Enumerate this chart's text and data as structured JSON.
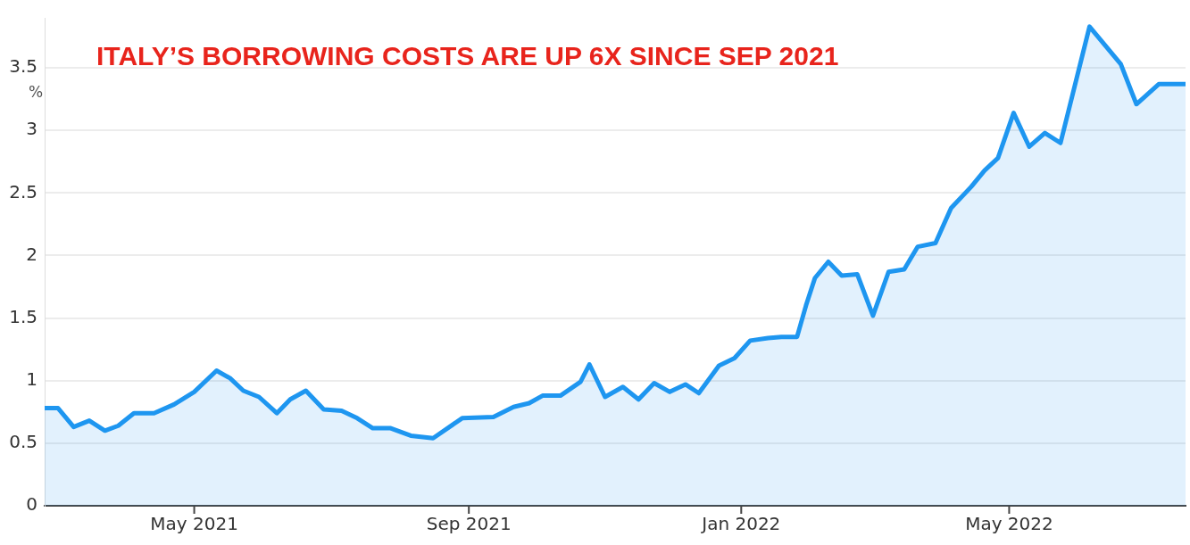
{
  "chart_data": {
    "type": "area",
    "title": "ITALY’S BORROWING COSTS ARE UP 6X SINCE SEP 2021",
    "ylabel": "%",
    "xlim": [
      "2021-02-23",
      "2022-07-19"
    ],
    "xticks": [
      {
        "value": "2021-05-01",
        "label": "May 2021"
      },
      {
        "value": "2021-09-01",
        "label": "Sep 2021"
      },
      {
        "value": "2022-01-01",
        "label": "Jan 2022"
      },
      {
        "value": "2022-05-01",
        "label": "May 2022"
      }
    ],
    "ylim": [
      0,
      3.9
    ],
    "yticks": [
      0,
      0.5,
      1,
      1.5,
      2,
      2.5,
      3,
      3.5
    ],
    "grid": "y",
    "legend": false,
    "marker": "none",
    "line_style": "solid",
    "series": [
      {
        "color": "#1e96f0",
        "x": [
          "2021-02-23",
          "2021-03-01",
          "2021-03-08",
          "2021-03-15",
          "2021-03-22",
          "2021-03-28",
          "2021-04-04",
          "2021-04-13",
          "2021-04-22",
          "2021-05-01",
          "2021-05-11",
          "2021-05-17",
          "2021-05-23",
          "2021-05-30",
          "2021-06-07",
          "2021-06-13",
          "2021-06-20",
          "2021-06-28",
          "2021-07-06",
          "2021-07-13",
          "2021-07-20",
          "2021-07-28",
          "2021-08-06",
          "2021-08-16",
          "2021-08-29",
          "2021-09-12",
          "2021-09-21",
          "2021-09-28",
          "2021-10-04",
          "2021-10-12",
          "2021-10-21",
          "2021-10-25",
          "2021-11-01",
          "2021-11-09",
          "2021-11-16",
          "2021-11-23",
          "2021-11-30",
          "2021-12-07",
          "2021-12-13",
          "2021-12-22",
          "2021-12-29",
          "2022-01-05",
          "2022-01-13",
          "2022-01-19",
          "2022-01-26",
          "2022-01-30",
          "2022-02-03",
          "2022-02-09",
          "2022-02-15",
          "2022-02-22",
          "2022-03-01",
          "2022-03-08",
          "2022-03-15",
          "2022-03-21",
          "2022-03-29",
          "2022-04-05",
          "2022-04-14",
          "2022-04-20",
          "2022-04-26",
          "2022-05-03",
          "2022-05-10",
          "2022-05-17",
          "2022-05-24",
          "2022-06-06",
          "2022-06-20",
          "2022-06-27",
          "2022-07-07",
          "2022-07-19"
        ],
        "values": [
          0.78,
          0.78,
          0.63,
          0.68,
          0.6,
          0.64,
          0.74,
          0.74,
          0.81,
          0.91,
          1.08,
          1.02,
          0.92,
          0.87,
          0.74,
          0.85,
          0.92,
          0.77,
          0.76,
          0.7,
          0.62,
          0.62,
          0.56,
          0.54,
          0.7,
          0.71,
          0.79,
          0.82,
          0.88,
          0.88,
          0.99,
          1.13,
          0.87,
          0.95,
          0.85,
          0.98,
          0.91,
          0.97,
          0.9,
          1.12,
          1.18,
          1.32,
          1.34,
          1.35,
          1.35,
          1.6,
          1.82,
          1.95,
          1.84,
          1.85,
          1.52,
          1.87,
          1.89,
          2.07,
          2.1,
          2.38,
          2.55,
          2.68,
          2.78,
          3.14,
          2.87,
          2.98,
          2.9,
          3.83,
          3.53,
          3.21,
          3.37,
          3.37
        ]
      }
    ]
  }
}
